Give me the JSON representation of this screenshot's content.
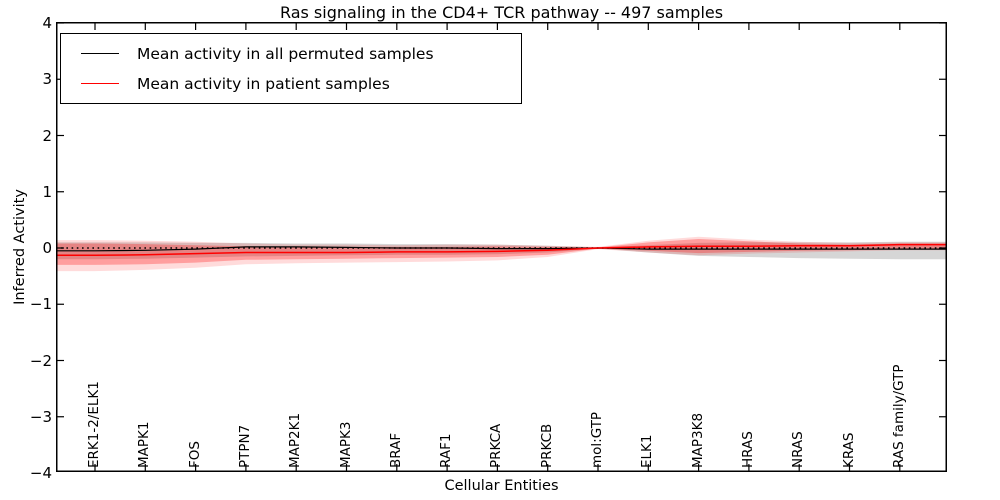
{
  "title": "Ras signaling in the CD4+ TCR pathway -- 497 samples",
  "axes": {
    "ylabel": "Inferred Activity",
    "xlabel": "Cellular Entities",
    "yticks": [
      4,
      3,
      2,
      1,
      0,
      -1,
      -2,
      -3,
      -4
    ],
    "ylim": [
      -4,
      4
    ]
  },
  "legend": {
    "entries": [
      {
        "label": "Mean activity in all permuted samples",
        "color": "#000000",
        "line_width": 1.2
      },
      {
        "label": "Mean activity in patient samples",
        "color": "#ff0000",
        "line_width": 1.5
      }
    ],
    "position": "upper left"
  },
  "chart_data": {
    "type": "line",
    "title": "Ras signaling in the CD4+ TCR pathway -- 497 samples",
    "xlabel": "Cellular Entities",
    "ylabel": "Inferred Activity",
    "ylim": [
      -4,
      4
    ],
    "grid": false,
    "legend_position": "upper left",
    "categories": [
      "ERK1-2/ELK1",
      "MAPK1",
      "FOS",
      "PTPN7",
      "MAP2K1",
      "MAPK3",
      "BRAF",
      "RAF1",
      "PRKCA",
      "PRKCB",
      "mol:GTP",
      "ELK1",
      "MAP3K8",
      "HRAS",
      "NRAS",
      "KRAS",
      "RAS family/GTP"
    ],
    "series": [
      {
        "name": "Mean activity in all permuted samples",
        "color": "#000000",
        "style": "solid",
        "width": 1.2,
        "values": [
          -0.05,
          -0.04,
          -0.02,
          0.02,
          0.02,
          0.01,
          0.0,
          0.0,
          -0.01,
          -0.01,
          0.0,
          -0.02,
          -0.02,
          -0.02,
          -0.02,
          -0.02,
          -0.02
        ]
      },
      {
        "name": "Mean activity in patient samples",
        "color": "#ff0000",
        "style": "solid",
        "width": 1.5,
        "values": [
          -0.13,
          -0.12,
          -0.1,
          -0.08,
          -0.08,
          -0.08,
          -0.07,
          -0.07,
          -0.06,
          -0.04,
          0.0,
          0.02,
          0.03,
          0.03,
          0.04,
          0.04,
          0.06
        ]
      },
      {
        "name": "zero reference",
        "color": "#000000",
        "style": "dotted",
        "width": 1.4,
        "values": [
          0,
          0,
          0,
          0,
          0,
          0,
          0,
          0,
          0,
          0,
          0,
          0,
          0,
          0,
          0,
          0,
          0
        ]
      }
    ],
    "bands": [
      {
        "name": "permuted samples std band",
        "color": "#999999",
        "opacity": 0.4,
        "upper": [
          0.1,
          0.1,
          0.09,
          0.09,
          0.08,
          0.08,
          0.07,
          0.07,
          0.06,
          0.04,
          0.01,
          0.05,
          0.09,
          0.1,
          0.1,
          0.1,
          0.11
        ],
        "lower": [
          -0.2,
          -0.19,
          -0.17,
          -0.15,
          -0.14,
          -0.13,
          -0.12,
          -0.12,
          -0.11,
          -0.08,
          -0.01,
          -0.08,
          -0.14,
          -0.16,
          -0.18,
          -0.19,
          -0.2
        ]
      },
      {
        "name": "patient samples outer std band",
        "color": "#ff0000",
        "opacity": 0.14,
        "upper": [
          0.14,
          0.13,
          0.11,
          0.08,
          0.06,
          0.06,
          0.05,
          0.06,
          0.06,
          0.04,
          0.02,
          0.13,
          0.2,
          0.15,
          0.11,
          0.09,
          0.1
        ],
        "lower": [
          -0.41,
          -0.39,
          -0.35,
          -0.29,
          -0.27,
          -0.26,
          -0.25,
          -0.24,
          -0.22,
          -0.16,
          -0.02,
          -0.08,
          -0.13,
          -0.1,
          -0.08,
          -0.06,
          -0.04
        ]
      },
      {
        "name": "patient samples inner std band",
        "color": "#ff0000",
        "opacity": 0.28,
        "upper": [
          0.08,
          0.07,
          0.05,
          0.03,
          0.02,
          0.02,
          0.02,
          0.02,
          0.03,
          0.02,
          0.01,
          0.1,
          0.16,
          0.12,
          0.08,
          0.06,
          0.08
        ],
        "lower": [
          -0.3,
          -0.29,
          -0.26,
          -0.21,
          -0.2,
          -0.19,
          -0.18,
          -0.17,
          -0.16,
          -0.12,
          -0.01,
          -0.05,
          -0.09,
          -0.07,
          -0.05,
          -0.04,
          -0.02
        ]
      }
    ]
  },
  "colors": {
    "axis": "#000000",
    "background": "#ffffff",
    "permuted_line": "#000000",
    "patient_line": "#ff0000"
  }
}
